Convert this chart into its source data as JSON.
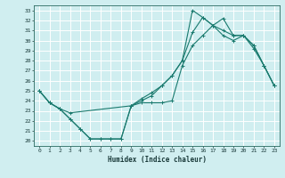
{
  "xlabel": "Humidex (Indice chaleur)",
  "xlim": [
    -0.5,
    23.5
  ],
  "ylim": [
    19.5,
    33.5
  ],
  "yticks": [
    20,
    21,
    22,
    23,
    24,
    25,
    26,
    27,
    28,
    29,
    30,
    31,
    32,
    33
  ],
  "xticks": [
    0,
    1,
    2,
    3,
    4,
    5,
    6,
    7,
    8,
    9,
    10,
    11,
    12,
    13,
    14,
    15,
    16,
    17,
    18,
    19,
    20,
    21,
    22,
    23
  ],
  "bg_color": "#d0eef0",
  "grid_color": "#ffffff",
  "line_color": "#1a7a6e",
  "line1_x": [
    0,
    1,
    2,
    3,
    4,
    5,
    6,
    7,
    8,
    9,
    10,
    11,
    12,
    13,
    14,
    15,
    16,
    17,
    18,
    19,
    20,
    21,
    22,
    23
  ],
  "line1_y": [
    25.0,
    23.8,
    23.2,
    22.2,
    21.2,
    20.2,
    20.2,
    20.2,
    20.2,
    23.5,
    23.8,
    23.8,
    23.8,
    24.0,
    27.5,
    29.5,
    30.5,
    31.5,
    32.2,
    30.5,
    30.5,
    29.2,
    27.5,
    25.5
  ],
  "line2_x": [
    0,
    1,
    2,
    3,
    4,
    5,
    6,
    7,
    8,
    9,
    10,
    11,
    12,
    13,
    14,
    15,
    16,
    17,
    18,
    19,
    20,
    21,
    22,
    23
  ],
  "line2_y": [
    25.0,
    23.8,
    23.2,
    22.2,
    21.2,
    20.2,
    20.2,
    20.2,
    20.2,
    23.5,
    24.0,
    24.5,
    25.5,
    26.5,
    28.0,
    30.8,
    32.3,
    31.5,
    31.0,
    30.5,
    30.5,
    29.5,
    27.5,
    25.5
  ],
  "line3_x": [
    0,
    1,
    2,
    3,
    9,
    10,
    11,
    12,
    13,
    14,
    15,
    16,
    17,
    18,
    19,
    20,
    21,
    22,
    23
  ],
  "line3_y": [
    25.0,
    23.8,
    23.2,
    22.8,
    23.5,
    24.2,
    24.8,
    25.5,
    26.5,
    28.0,
    33.0,
    32.3,
    31.5,
    30.5,
    30.0,
    30.5,
    29.5,
    27.5,
    25.5
  ]
}
